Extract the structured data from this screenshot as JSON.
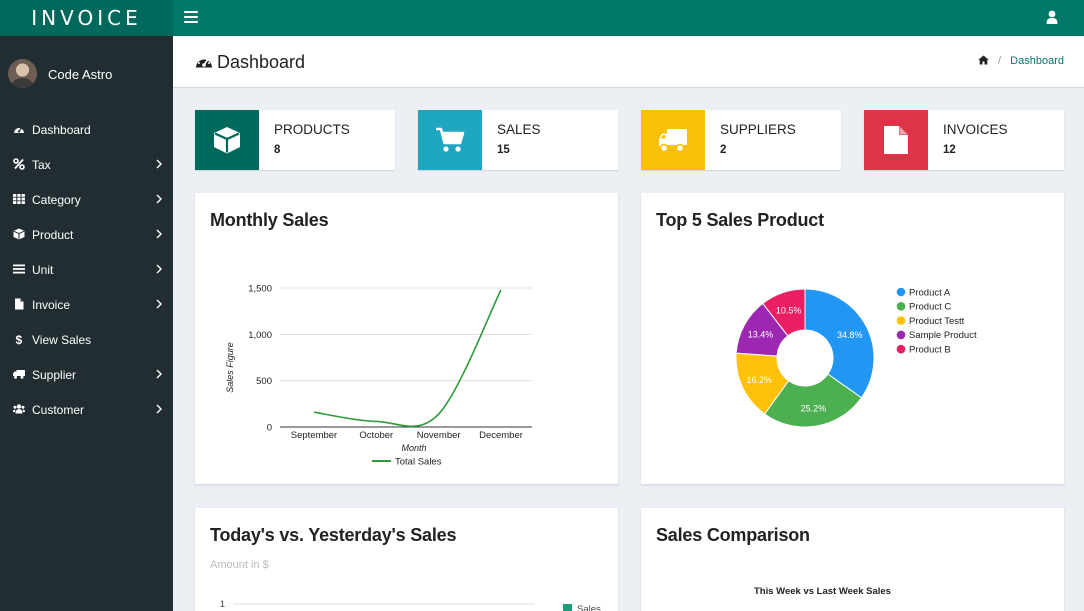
{
  "app": {
    "logo": "INVOICE"
  },
  "user": {
    "name": "Code Astro"
  },
  "sidebar": {
    "items": [
      {
        "label": "Dashboard",
        "icon": "dashboard-icon",
        "has_submenu": false
      },
      {
        "label": "Tax",
        "icon": "percent-icon",
        "has_submenu": true
      },
      {
        "label": "Category",
        "icon": "grid-icon",
        "has_submenu": true
      },
      {
        "label": "Product",
        "icon": "cube-icon",
        "has_submenu": true
      },
      {
        "label": "Unit",
        "icon": "list-icon",
        "has_submenu": true
      },
      {
        "label": "Invoice",
        "icon": "file-icon",
        "has_submenu": true
      },
      {
        "label": "View Sales",
        "icon": "dollar-icon",
        "has_submenu": false
      },
      {
        "label": "Supplier",
        "icon": "truck-icon",
        "has_submenu": true
      },
      {
        "label": "Customer",
        "icon": "users-icon",
        "has_submenu": true
      }
    ]
  },
  "header": {
    "title": "Dashboard",
    "breadcrumb": [
      "Dashboard"
    ]
  },
  "info_boxes": [
    {
      "label": "PRODUCTS",
      "value": "8",
      "color": "#00695c",
      "icon": "cube-icon"
    },
    {
      "label": "SALES",
      "value": "15",
      "color": "#1fa7c0",
      "icon": "cart-icon"
    },
    {
      "label": "SUPPLIERS",
      "value": "2",
      "color": "#f8c009",
      "icon": "truck-icon"
    },
    {
      "label": "INVOICES",
      "value": "12",
      "color": "#dd3447",
      "icon": "file-icon"
    }
  ],
  "panels": {
    "monthly_sales": {
      "title": "Monthly Sales"
    },
    "top5": {
      "title": "Top 5 Sales Product"
    },
    "today_vs_yesterday": {
      "title": "Today's vs. Yesterday's Sales",
      "note": "Amount in $"
    },
    "sales_comparison": {
      "title": "Sales Comparison"
    }
  },
  "chart_data": [
    {
      "type": "line",
      "x": [
        "September",
        "October",
        "November",
        "December"
      ],
      "series": [
        {
          "name": "Total Sales",
          "values": [
            160,
            60,
            140,
            1480
          ],
          "color": "#2e9b3a"
        }
      ],
      "xlabel": "Month",
      "ylabel": "Sales Figure",
      "yticks": [
        "0",
        "500",
        "1,000",
        "1,500"
      ],
      "ylim": [
        0,
        1500
      ],
      "grid": true,
      "legend": "bottom",
      "curve": "smooth"
    },
    {
      "type": "pie",
      "donut": true,
      "labels": [
        "Product A",
        "Product C",
        "Product Testt",
        "Sample Product",
        "Product B"
      ],
      "values": [
        34.8,
        25.2,
        16.2,
        13.4,
        10.5
      ],
      "value_labels": [
        "34.8%",
        "25.2%",
        "16.2%",
        "13.4%",
        "10.5%"
      ],
      "colors": [
        "#2196f3",
        "#4caf50",
        "#ffc107",
        "#9c27b0",
        "#e91e63"
      ],
      "legend": "right"
    },
    {
      "type": "bar",
      "series": [
        {
          "name": "Sales",
          "color": "#1a9e7a"
        }
      ],
      "yticks": [
        "1"
      ],
      "ylabel": "Amount in $",
      "legend": "right"
    },
    {
      "type": "bar",
      "title": "This Week vs Last Week Sales"
    }
  ]
}
